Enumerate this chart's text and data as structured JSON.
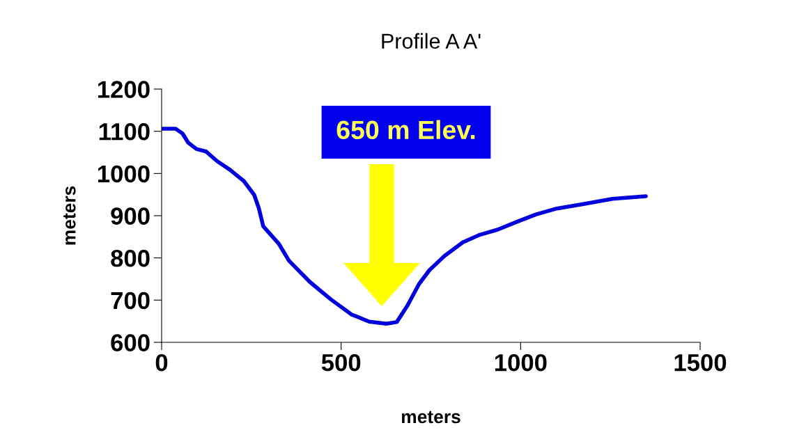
{
  "chart_data": {
    "type": "line",
    "title": "Profile A A'",
    "xlabel": "meters",
    "ylabel": "meters",
    "x": [
      0,
      39,
      58,
      74,
      97,
      124,
      155,
      190,
      229,
      258,
      271,
      283,
      326,
      355,
      413,
      471,
      529,
      578,
      626,
      655,
      684,
      717,
      746,
      787,
      839,
      887,
      936,
      994,
      1043,
      1101,
      1178,
      1256,
      1349
    ],
    "series": [
      {
        "color": "#0000dd",
        "values": [
          1106,
          1106,
          1095,
          1073,
          1058,
          1052,
          1029,
          1009,
          982,
          949,
          917,
          875,
          834,
          793,
          743,
          702,
          666,
          649,
          644,
          648,
          686,
          738,
          771,
          804,
          837,
          855,
          867,
          887,
          903,
          917,
          928,
          940,
          946
        ]
      }
    ],
    "xlim": [
      0,
      1500
    ],
    "ylim": [
      600,
      1200
    ],
    "xticks": [
      0,
      500,
      1000,
      1500
    ],
    "yticks": [
      600,
      700,
      800,
      900,
      1000,
      1100,
      1200
    ],
    "grid": false,
    "marker": "none",
    "line_style": "solid",
    "annotations": [
      "650 m Elev."
    ]
  }
}
